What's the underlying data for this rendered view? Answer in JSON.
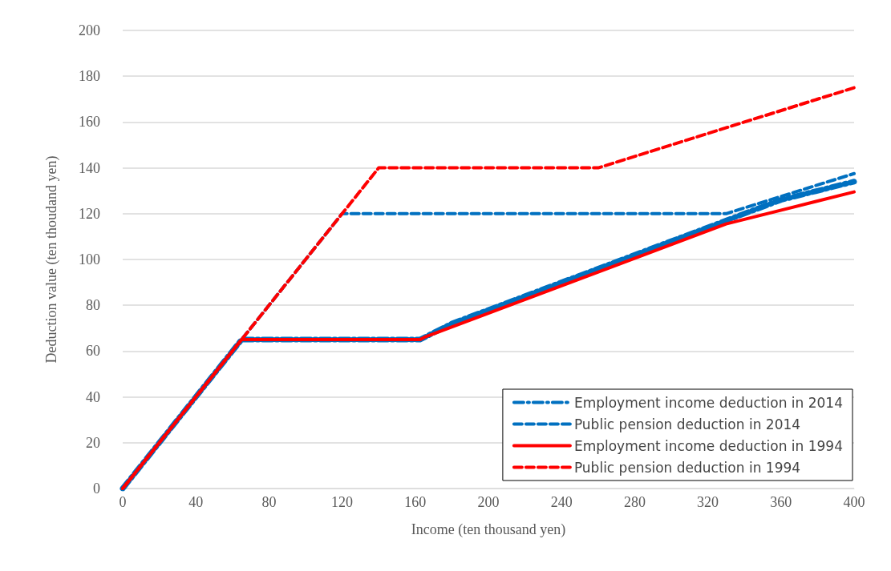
{
  "chart_data": {
    "type": "line",
    "xlabel": "Income (ten thousand yen)",
    "ylabel": "Deduction value (ten thoudand yen)",
    "xlim": [
      0,
      400
    ],
    "xticks": [
      0,
      40,
      80,
      120,
      160,
      200,
      240,
      280,
      320,
      360,
      400
    ],
    "ylim": [
      0,
      200
    ],
    "yticks": [
      0,
      20,
      40,
      60,
      80,
      100,
      120,
      140,
      160,
      180,
      200
    ],
    "grid": "y",
    "legend": "bottom right",
    "marker": "none",
    "series": [
      {
        "name": "Employment income deduction in 2014",
        "color": "#0070c0",
        "line_style": "dotted",
        "x": [
          0,
          65,
          162.5,
          180,
          360,
          400
        ],
        "values": [
          0,
          65,
          65,
          72,
          126,
          134
        ]
      },
      {
        "name": "Public pension deduction in 2014",
        "color": "#0070c0",
        "line_style": "dashed",
        "x": [
          0,
          120,
          330,
          400
        ],
        "values": [
          0,
          120,
          120,
          137.5
        ]
      },
      {
        "name": "Employment income deduction in 1994",
        "color": "#ff0000",
        "line_style": "solid",
        "x": [
          0,
          65,
          162.5,
          165,
          330,
          400
        ],
        "values": [
          0,
          65,
          65,
          66,
          115.5,
          129.5
        ]
      },
      {
        "name": "Public pension deduction in 1994",
        "color": "#ff0000",
        "line_style": "dashed",
        "x": [
          0,
          140,
          260,
          400
        ],
        "values": [
          0,
          140,
          140,
          175
        ]
      }
    ]
  }
}
